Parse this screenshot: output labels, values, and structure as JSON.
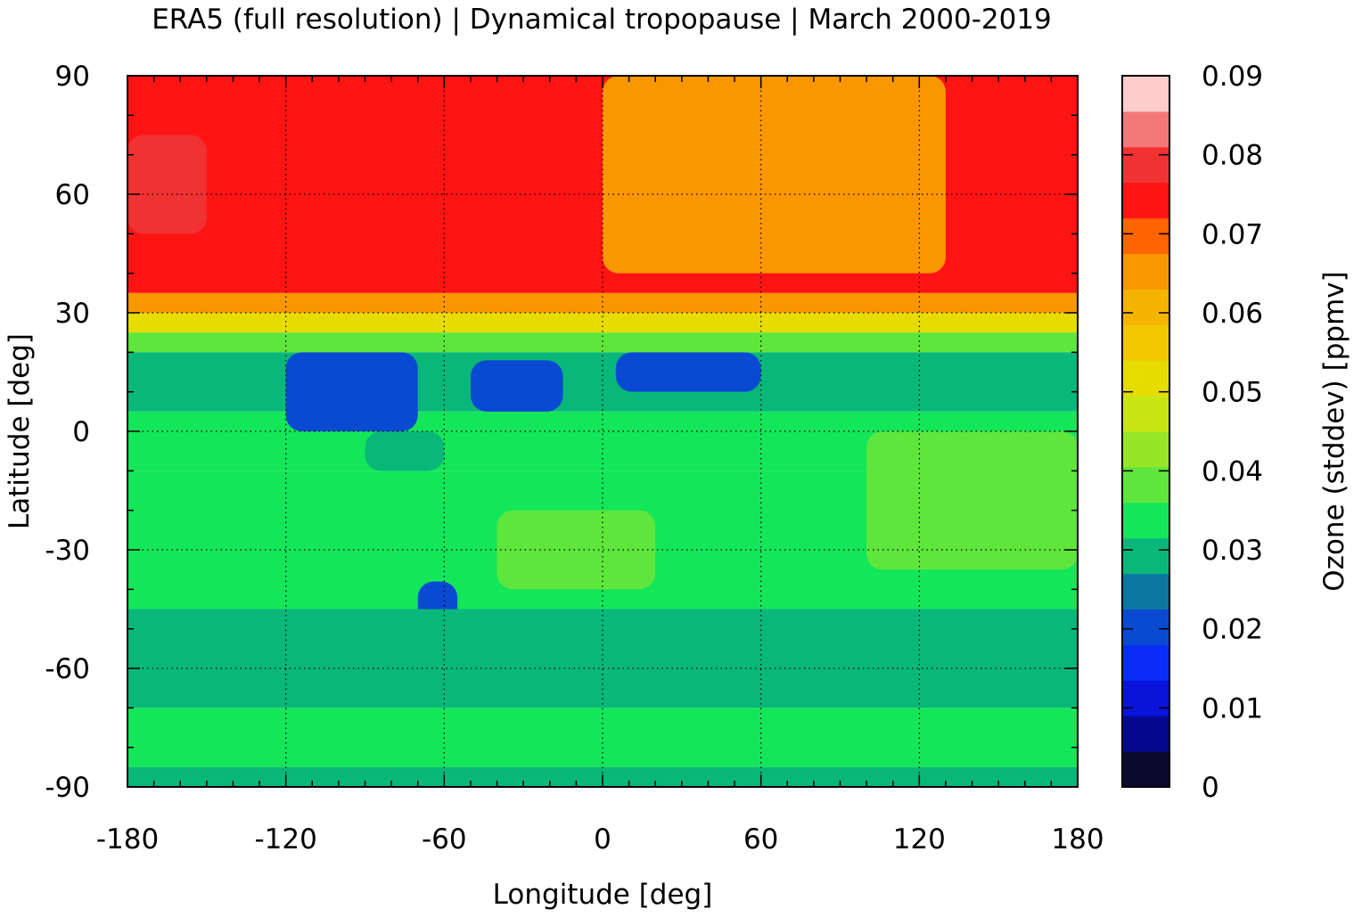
{
  "chart_data": {
    "type": "heatmap",
    "title": "ERA5 (full resolution) | Dynamical tropopause | March 2000-2019",
    "xlabel": "Longitude [deg]",
    "ylabel": "Latitude [deg]",
    "colorbar_label": "Ozone (stddev) [ppmv]",
    "xlim": [
      -180,
      180
    ],
    "ylim": [
      -90,
      90
    ],
    "xticks": [
      "-180",
      "-120",
      "-60",
      "0",
      "60",
      "120",
      "180"
    ],
    "yticks": [
      "90",
      "60",
      "30",
      "0",
      "-30",
      "-60",
      "-90"
    ],
    "xtick_values": [
      -180,
      -120,
      -60,
      0,
      60,
      120,
      180
    ],
    "ytick_values": [
      90,
      60,
      30,
      0,
      -30,
      -60,
      -90
    ],
    "grid": true,
    "colorbar": {
      "range": [
        0,
        0.09
      ],
      "tick_values": [
        0,
        0.01,
        0.02,
        0.03,
        0.04,
        0.05,
        0.06,
        0.07,
        0.08,
        0.09
      ],
      "tick_labels": [
        "0",
        "0.01",
        "0.02",
        "0.03",
        "0.04",
        "0.05",
        "0.06",
        "0.07",
        "0.08",
        "0.09"
      ],
      "levels": [
        0,
        0.0045,
        0.009,
        0.0135,
        0.018,
        0.0225,
        0.027,
        0.0315,
        0.036,
        0.0405,
        0.045,
        0.0495,
        0.054,
        0.0585,
        0.063,
        0.0675,
        0.072,
        0.0765,
        0.081,
        0.0855,
        0.09
      ],
      "colors": [
        "#0a0a2e",
        "#06088f",
        "#0a14d8",
        "#0a2df5",
        "#0a4ad2",
        "#0a78a0",
        "#0ab77a",
        "#14e65a",
        "#5fe63c",
        "#96e628",
        "#c8e614",
        "#e6dc00",
        "#f0c800",
        "#f5b400",
        "#fa9600",
        "#ff6400",
        "#ff1414",
        "#f03232",
        "#f57878",
        "#ffcccc"
      ]
    },
    "bands": [
      {
        "lat_range": [
          75,
          90
        ],
        "value": 0.074
      },
      {
        "lat_range": [
          35,
          75
        ],
        "value": 0.072
      },
      {
        "lat_range": [
          30,
          35
        ],
        "value": 0.064
      },
      {
        "lat_range": [
          25,
          30
        ],
        "value": 0.05
      },
      {
        "lat_range": [
          20,
          25
        ],
        "value": 0.038
      },
      {
        "lat_range": [
          5,
          20
        ],
        "value": 0.028
      },
      {
        "lat_range": [
          -10,
          5
        ],
        "value": 0.032
      },
      {
        "lat_range": [
          -45,
          -10
        ],
        "value": 0.033
      },
      {
        "lat_range": [
          -70,
          -45
        ],
        "value": 0.029
      },
      {
        "lat_range": [
          -85,
          -70
        ],
        "value": 0.032
      },
      {
        "lat_range": [
          -90,
          -85
        ],
        "value": 0.029
      }
    ],
    "regions": [
      {
        "lon": [
          0,
          130
        ],
        "lat": [
          40,
          90
        ],
        "value": 0.065
      },
      {
        "lon": [
          -55,
          -5
        ],
        "lat": [
          60,
          85
        ],
        "value": 0.074
      },
      {
        "lon": [
          -180,
          -150
        ],
        "lat": [
          50,
          75
        ],
        "value": 0.08
      },
      {
        "lon": [
          -120,
          -70
        ],
        "lat": [
          0,
          20
        ],
        "value": 0.022
      },
      {
        "lon": [
          -50,
          -15
        ],
        "lat": [
          5,
          18
        ],
        "value": 0.022
      },
      {
        "lon": [
          5,
          60
        ],
        "lat": [
          10,
          20
        ],
        "value": 0.022
      },
      {
        "lon": [
          -90,
          -60
        ],
        "lat": [
          -10,
          0
        ],
        "value": 0.028
      },
      {
        "lon": [
          -40,
          20
        ],
        "lat": [
          -40,
          -20
        ],
        "value": 0.036
      },
      {
        "lon": [
          100,
          180
        ],
        "lat": [
          -35,
          0
        ],
        "value": 0.036
      },
      {
        "lon": [
          -70,
          -55
        ],
        "lat": [
          -50,
          -38
        ],
        "value": 0.022
      },
      {
        "lon": [
          -100,
          20
        ],
        "lat": [
          -60,
          -45
        ],
        "value": 0.029
      }
    ]
  }
}
